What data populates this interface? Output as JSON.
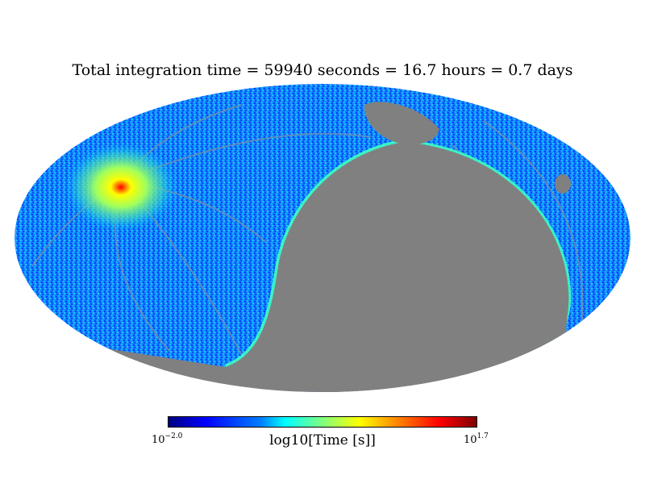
{
  "chart_data": {
    "type": "heatmap",
    "projection": "mollweide",
    "title": "Total integration time = 59940 seconds = 16.7 hours = 0.7 days",
    "colorbar": {
      "label": "log10[Time [s]]",
      "min_base": "10",
      "min_exp": "−2.0",
      "max_base": "10",
      "max_exp": "1.7",
      "vmin": -2.0,
      "vmax": 1.7,
      "colormap": "jet"
    },
    "unobserved_color": "#808080",
    "hotspot": {
      "lon_deg": 110,
      "lat_deg": 25,
      "log10_time": 1.7
    }
  }
}
